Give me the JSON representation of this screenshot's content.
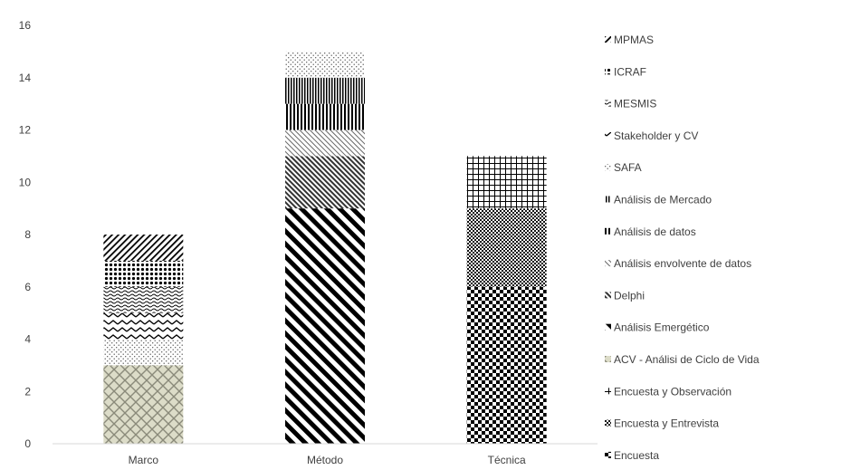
{
  "chart_data": {
    "type": "bar",
    "stacked": true,
    "categories": [
      "Marco",
      "Método",
      "Técnica"
    ],
    "ylim": [
      0,
      16
    ],
    "yticks": [
      0,
      2,
      4,
      6,
      8,
      10,
      12,
      14,
      16
    ],
    "grid": false,
    "legend_position": "right",
    "series": [
      {
        "name": "Encuesta",
        "values": [
          0,
          0,
          6
        ],
        "pattern": "checker-small"
      },
      {
        "name": "Encuesta y Entrevista",
        "values": [
          0,
          0,
          3
        ],
        "pattern": "checker-fine"
      },
      {
        "name": "Encuesta y Observación",
        "values": [
          0,
          0,
          2
        ],
        "pattern": "grid"
      },
      {
        "name": "ACV - Análisi de Ciclo de Vida",
        "values": [
          3,
          0,
          0
        ],
        "pattern": "weave"
      },
      {
        "name": "Análisis Emergético",
        "values": [
          0,
          9,
          0
        ],
        "pattern": "diag-wide"
      },
      {
        "name": "Delphi",
        "values": [
          0,
          2,
          0
        ],
        "pattern": "diag-dense"
      },
      {
        "name": "Análisis envolvente de datos",
        "values": [
          0,
          1,
          0
        ],
        "pattern": "diag-light"
      },
      {
        "name": "Análisis de datos",
        "values": [
          0,
          1,
          0
        ],
        "pattern": "vert-wide"
      },
      {
        "name": "Análisis de Mercado",
        "values": [
          0,
          1,
          0
        ],
        "pattern": "vert-dense"
      },
      {
        "name": "SAFA",
        "values": [
          1,
          1,
          0
        ],
        "pattern": "dots-sparse"
      },
      {
        "name": "Stakeholder y CV",
        "values": [
          1,
          0,
          0
        ],
        "pattern": "zigzag"
      },
      {
        "name": "MESMIS",
        "values": [
          1,
          0,
          0
        ],
        "pattern": "wave"
      },
      {
        "name": "ICRAF",
        "values": [
          1,
          0,
          0
        ],
        "pattern": "dots-big"
      },
      {
        "name": "MPMAS",
        "values": [
          1,
          0,
          0
        ],
        "pattern": "diag-back"
      }
    ]
  }
}
